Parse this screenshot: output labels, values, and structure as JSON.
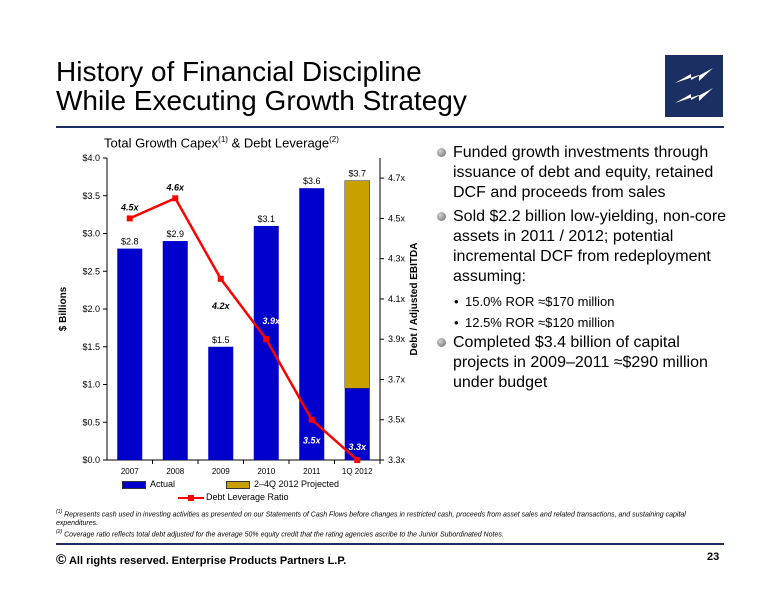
{
  "title_line1": "History of Financial Discipline",
  "title_line2": "While Executing Growth Strategy",
  "logo": "enterprise-products-logo",
  "chart_title": {
    "text1": "Total Growth Capex",
    "sup1": "(1)",
    "text2": " & Debt Leverage",
    "sup2": "(2)"
  },
  "chart_data": {
    "type": "bar",
    "categories": [
      "2007",
      "2008",
      "2009",
      "2010",
      "2011",
      "1Q 2012"
    ],
    "series": [
      {
        "name": "Actual",
        "values": [
          2.8,
          2.9,
          1.5,
          3.1,
          3.6,
          0.95
        ],
        "labels": [
          "$2.8",
          "$2.9",
          "$1.5",
          "$3.1",
          "$3.6",
          ""
        ],
        "color": "#0000cc"
      },
      {
        "name": "2–4Q 2012 Projected",
        "values": [
          0,
          0,
          0,
          0,
          0,
          2.75
        ],
        "labels": [
          "",
          "",
          "",
          "",
          "",
          "$3.7"
        ],
        "color": "#c8a000"
      },
      {
        "name": "Debt Leverage Ratio",
        "type": "line",
        "values": [
          4.5,
          4.6,
          4.2,
          3.9,
          3.5,
          3.3
        ],
        "labels": [
          "4.5x",
          "4.6x",
          "4.2x",
          "3.9x",
          "3.5x",
          "3.3x"
        ],
        "color": "#ff0000"
      }
    ],
    "ylabel": "$ Billions",
    "y2label": "Debt / Adjusted EBITDA",
    "ylim": [
      0,
      4.0
    ],
    "y2lim": [
      3.3,
      4.8
    ],
    "yticks": [
      "$0.0",
      "$0.5",
      "$1.0",
      "$1.5",
      "$2.0",
      "$2.5",
      "$3.0",
      "$3.5",
      "$4.0"
    ],
    "y2ticks": [
      "3.3x",
      "3.5x",
      "3.7x",
      "3.9x",
      "4.1x",
      "4.3x",
      "4.5x",
      "4.7x"
    ],
    "grid": false,
    "legend": "bottom"
  },
  "bullets": [
    {
      "level": 1,
      "text": "Funded growth investments through issuance of debt and equity, retained DCF and proceeds from sales"
    },
    {
      "level": 1,
      "text": "Sold $2.2 billion low-yielding, non-core assets in 2011 / 2012; potential incremental DCF from redeployment assuming:"
    },
    {
      "level": 2,
      "text": "15.0% ROR ≈$170 million"
    },
    {
      "level": 2,
      "text": "12.5% ROR ≈$120 million"
    },
    {
      "level": 1,
      "text": "Completed $3.4 billion of capital projects in 2009–2011 ≈$290 million under budget"
    }
  ],
  "footnotes": [
    {
      "mark": "(1)",
      "text": " Represents cash used in investing activities as presented on our Statements of Cash Flows before changes in restricted cash, proceeds from asset sales and related transactions, and sustaining capital expenditures."
    },
    {
      "mark": "(2)",
      "text": " Coverage ratio reflects total debt adjusted for the average 50% equity credit that the rating agencies ascribe to the Junior Subordinated Notes."
    }
  ],
  "copyright_symbol": "©",
  "copyright_text": " All rights reserved. Enterprise Products Partners L.P.",
  "page_number": "23"
}
